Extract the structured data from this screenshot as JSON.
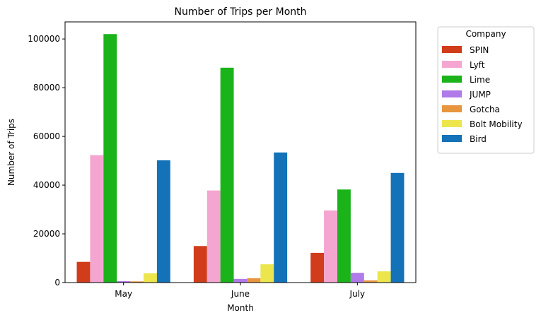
{
  "chart_data": {
    "type": "bar",
    "title": "Number of Trips per Month",
    "xlabel": "Month",
    "ylabel": "Number of Trips",
    "categories": [
      "May",
      "June",
      "July"
    ],
    "ylim": [
      0,
      107000
    ],
    "yticks": [
      0,
      20000,
      40000,
      60000,
      80000,
      100000
    ],
    "legend": {
      "title": "Company",
      "placement": "outside-top-right"
    },
    "grid": false,
    "series": [
      {
        "name": "SPIN",
        "color": "#d13c1a",
        "values": [
          8500,
          15000,
          12200
        ]
      },
      {
        "name": "Lyft",
        "color": "#f4a6d0",
        "values": [
          52300,
          37800,
          29600
        ]
      },
      {
        "name": "Lime",
        "color": "#1ab31a",
        "values": [
          102000,
          88200,
          38200
        ]
      },
      {
        "name": "JUMP",
        "color": "#b07ae8",
        "values": [
          600,
          1500,
          4000
        ]
      },
      {
        "name": "Gotcha",
        "color": "#e8963e",
        "values": [
          500,
          1800,
          900
        ]
      },
      {
        "name": "Bolt Mobility",
        "color": "#ece64c",
        "values": [
          3800,
          7500,
          4600
        ]
      },
      {
        "name": "Bird",
        "color": "#1372b8",
        "values": [
          50200,
          53400,
          45000
        ]
      }
    ]
  }
}
